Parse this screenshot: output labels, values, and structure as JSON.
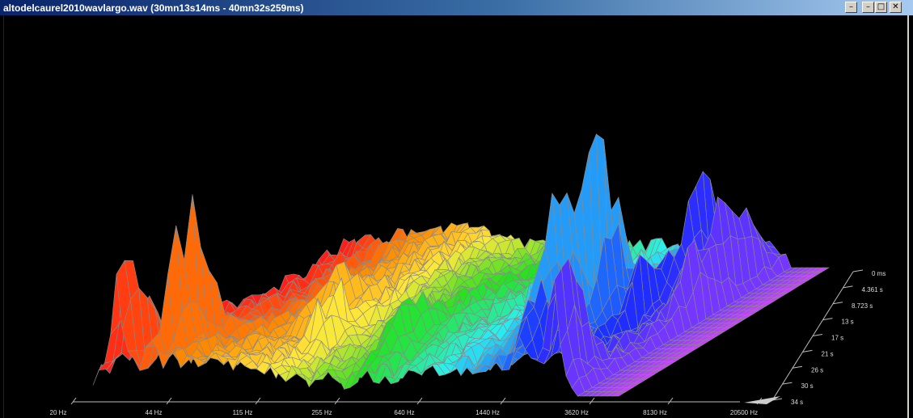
{
  "window": {
    "title": "altodelcaurel2010wavlargo.wav (30mn13s14ms - 40mn32s259ms)",
    "buttons": [
      "–",
      "□",
      "✕"
    ],
    "outer_buttons": [
      "–"
    ]
  },
  "chart_data": {
    "type": "surface3d",
    "x_axis": {
      "label": "",
      "scale": "log",
      "ticks": [
        "20 Hz",
        "44 Hz",
        "115 Hz",
        "255 Hz",
        "640 Hz",
        "1440 Hz",
        "3620 Hz",
        "8130 Hz",
        "20500 Hz"
      ]
    },
    "z_axis": {
      "label": "",
      "ticks": [
        "0 ms",
        "4.361 s",
        "8.723 s",
        "13 s",
        "17 s",
        "21 s",
        "26 s",
        "30 s",
        "34 s"
      ]
    },
    "colormap": [
      "#ff1a1a",
      "#ff8c00",
      "#ffe83a",
      "#24e01e",
      "#2cf0f0",
      "#1a2cff",
      "#d040ff"
    ],
    "series_note": ""
  }
}
